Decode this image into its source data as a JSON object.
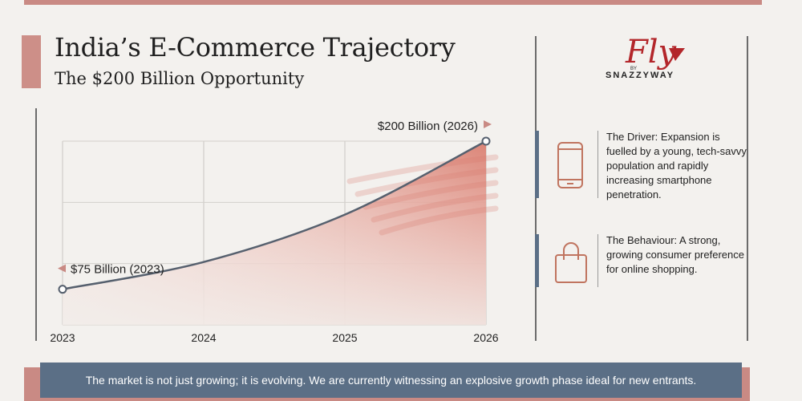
{
  "header": {
    "title": "India’s E-Commerce Trajectory",
    "subtitle": "The $200 Billion Opportunity"
  },
  "brand": {
    "logo_text": "Fly",
    "logo_small": "BY",
    "name": "SNAZZYWAY"
  },
  "info": [
    {
      "icon": "smartphone-icon",
      "text": "The Driver: Expansion is fuelled by a young, tech-savvy population and rapidly increasing smartphone penetration."
    },
    {
      "icon": "shopping-bag-icon",
      "text": "The Behaviour: A strong, growing consumer preference for online shopping."
    }
  ],
  "footer": {
    "text": "The market is not just growing; it is evolving. We are currently witnessing an explosive growth phase ideal for new entrants."
  },
  "colors": {
    "accent": "#c98a84",
    "navy": "#5b6f86",
    "line": "#56606e",
    "area": "#d9796a"
  },
  "chart_data": {
    "type": "area",
    "x": [
      2023,
      2024,
      2025,
      2026
    ],
    "x_labels": [
      "2023",
      "2024",
      "2025",
      "2026"
    ],
    "start": {
      "x": 2023,
      "y": 75,
      "label": "$75 Billion (2023)"
    },
    "end": {
      "x": 2026,
      "y": 200,
      "label": "$200 Billion (2026)"
    },
    "series": [
      {
        "values": [
          75,
          98,
          138,
          200
        ]
      }
    ],
    "title": "India’s E-Commerce Trajectory",
    "subtitle": "The $200 Billion Opportunity",
    "xlabel": "",
    "ylabel": "",
    "grid": true,
    "y_axis_labels_shown": false
  }
}
